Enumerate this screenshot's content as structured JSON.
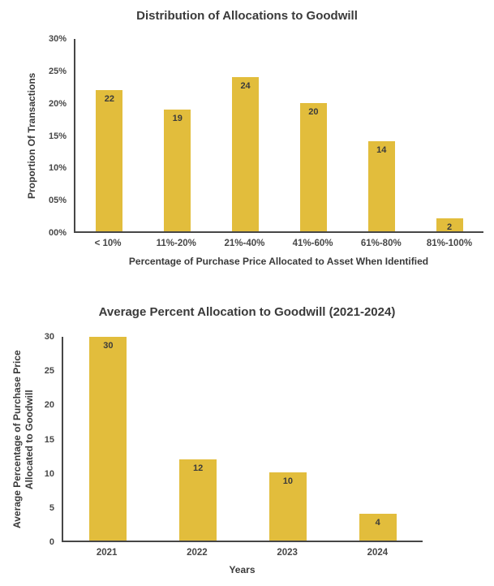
{
  "colors": {
    "background": "#ffffff",
    "bar": "#E2BD3C",
    "axis_line": "#474747",
    "title_text": "#3a3a3a",
    "tick_text": "#474747",
    "data_label_text": "#3b3b3b"
  },
  "chart_data": [
    {
      "type": "bar",
      "title": "Distribution of Allocations to Goodwill",
      "categories": [
        "< 10%",
        "11%-20%",
        "21%-40%",
        "41%-60%",
        "61%-80%",
        "81%-100%"
      ],
      "values": [
        22,
        19,
        24,
        20,
        14,
        2
      ],
      "data_labels": [
        "22",
        "19",
        "24",
        "20",
        "14",
        "2"
      ],
      "xlabel": "Percentage of Purchase Price Allocated to Asset When Identified",
      "ylabel": "Proportion Of Transactions",
      "ylim": [
        0,
        30
      ],
      "yticks": [
        "00%",
        "05%",
        "10%",
        "15%",
        "20%",
        "25%",
        "30%"
      ],
      "grid": false,
      "legend_position": "none",
      "bar_color": "#E2BD3C",
      "data_label_position": "inside-top"
    },
    {
      "type": "bar",
      "title": "Average Percent Allocation to Goodwill (2021-2024)",
      "categories": [
        "2021",
        "2022",
        "2023",
        "2024"
      ],
      "values": [
        30,
        12,
        10,
        4
      ],
      "data_labels": [
        "30",
        "12",
        "10",
        "4"
      ],
      "xlabel": "Years",
      "ylabel": "Average Percentage of Purchase Price\nAllocated to Goodwill",
      "ylim": [
        0,
        30
      ],
      "yticks": [
        "0",
        "5",
        "10",
        "15",
        "20",
        "25",
        "30"
      ],
      "grid": false,
      "legend_position": "none",
      "bar_color": "#E2BD3C",
      "data_label_position": "inside-top"
    }
  ]
}
